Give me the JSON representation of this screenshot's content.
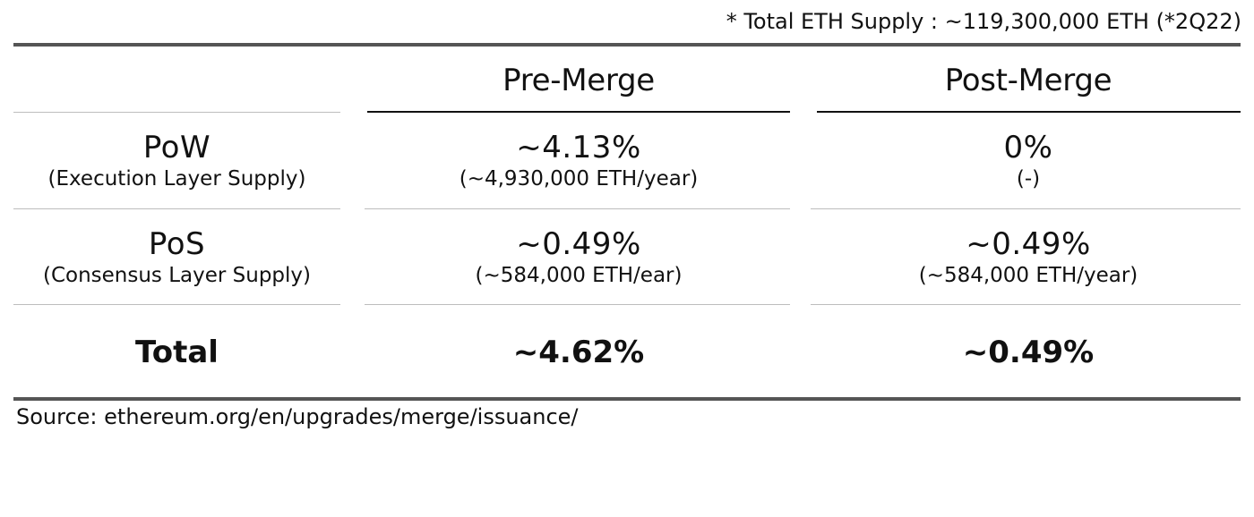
{
  "footnote": "* Total ETH Supply : ~119,300,000 ETH (*2Q22)",
  "header": {
    "pre_merge": "Pre-Merge",
    "post_merge": "Post-Merge"
  },
  "rows": [
    {
      "label": "PoW",
      "sublabel": "(Execution Layer Supply)",
      "pre_value": "~4.13%",
      "pre_sub": "(~4,930,000 ETH/year)",
      "post_value": "0%",
      "post_sub": "(-)"
    },
    {
      "label": "PoS",
      "sublabel": "(Consensus Layer Supply)",
      "pre_value": "~0.49%",
      "pre_sub": "(~584,000 ETH/ear)",
      "post_value": "~0.49%",
      "post_sub": "(~584,000 ETH/year)"
    }
  ],
  "total": {
    "label": "Total",
    "pre_value": "~4.62%",
    "post_value": "~0.49%"
  },
  "source": "Source: ethereum.org/en/upgrades/merge/issuance/"
}
